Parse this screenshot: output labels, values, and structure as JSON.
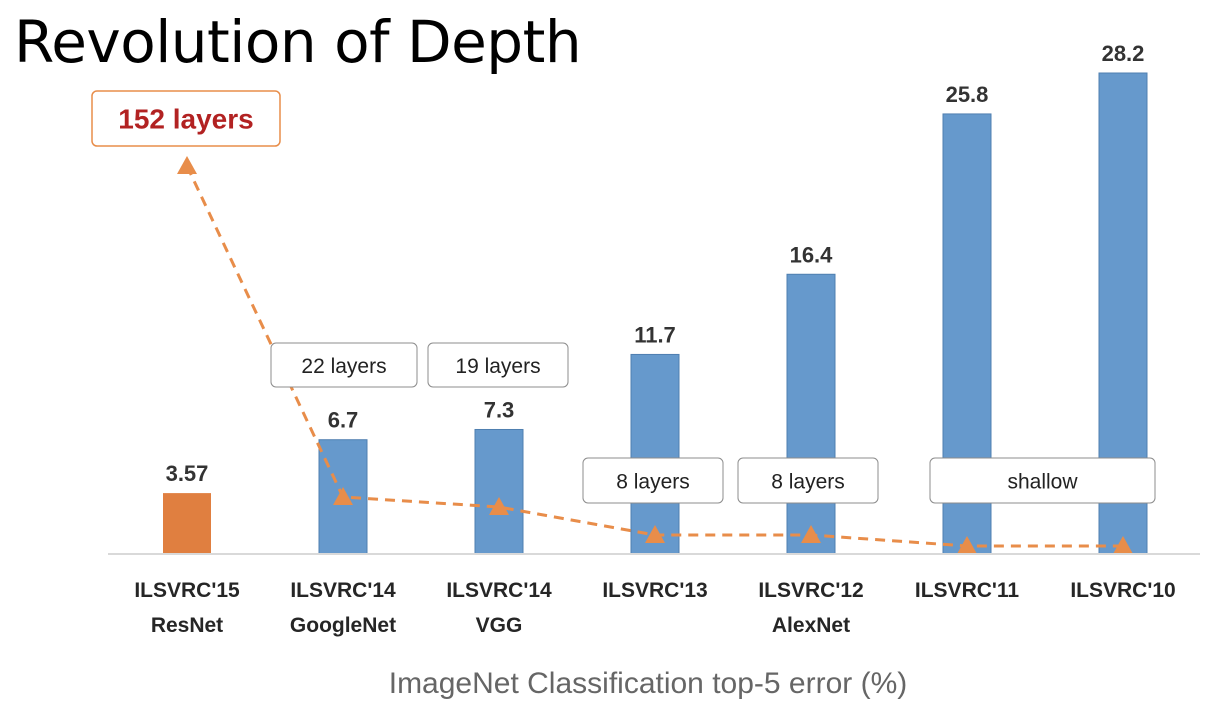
{
  "title": "Revolution of Depth",
  "colors": {
    "bar_default": "#6699CC",
    "bar_highlight": "#E07F40",
    "line": "#E88D4A",
    "highlight_text": "#B22222",
    "highlight_border": "#E88D4A",
    "axis": "#D9D9D9"
  },
  "chart_data": {
    "type": "bar",
    "xlabel": "ImageNet Classification top-5 error (%)",
    "ylabel": "",
    "ylim": [
      0,
      28.2
    ],
    "grid": false,
    "categories": [
      [
        "ILSVRC'15",
        "ResNet"
      ],
      [
        "ILSVRC'14",
        "GoogleNet"
      ],
      [
        "ILSVRC'14",
        "VGG"
      ],
      [
        "ILSVRC'13"
      ],
      [
        "ILSVRC'12",
        "AlexNet"
      ],
      [
        "ILSVRC'11"
      ],
      [
        "ILSVRC'10"
      ]
    ],
    "values": [
      3.57,
      6.7,
      7.3,
      11.7,
      16.4,
      25.8,
      28.2
    ],
    "value_labels": [
      "3.57",
      "6.7",
      "7.3",
      "11.7",
      "16.4",
      "25.8",
      "28.2"
    ],
    "highlight_index": 0,
    "layers_line": {
      "values": [
        152,
        22,
        19,
        8,
        8,
        1,
        1
      ]
    },
    "layer_labels": [
      {
        "text": "152 layers",
        "highlight": true
      },
      {
        "text": "22 layers"
      },
      {
        "text": "19 layers"
      },
      {
        "text": "8 layers"
      },
      {
        "text": "8 layers"
      },
      {
        "text": "shallow"
      }
    ]
  }
}
